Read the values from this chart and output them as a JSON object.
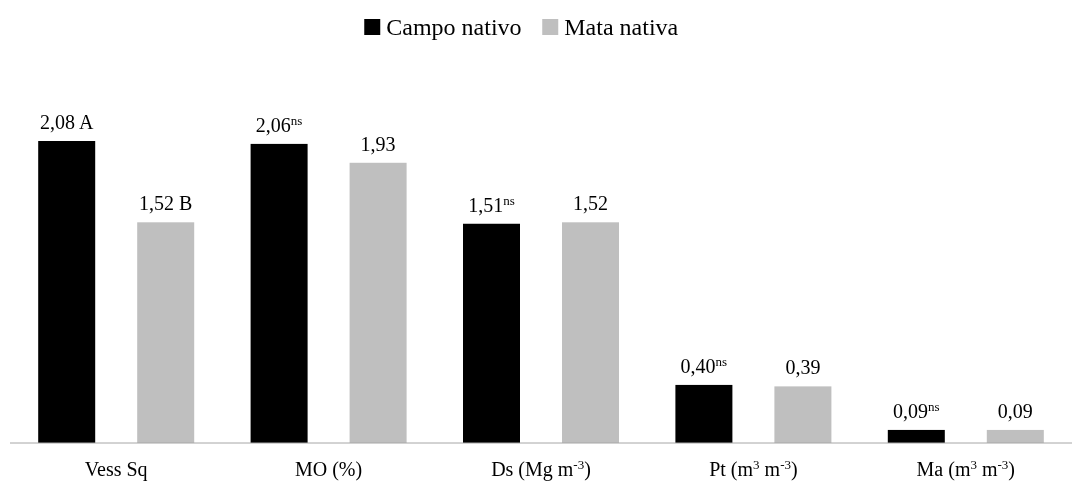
{
  "chart_data": {
    "type": "bar",
    "categories": [
      "Vess  Sq",
      "MO  (%)",
      "Ds (Mg m$^{-3}$)",
      "Pt  (m$^{3}$ m$^{-3}$)",
      "Ma (m$^{3}$ m$^{-3}$)"
    ],
    "series": [
      {
        "name": "Campo nativo",
        "color": "#000000",
        "values": [
          2.08,
          2.06,
          1.51,
          0.4,
          0.09
        ],
        "value_labels": [
          "2,08 A",
          "2,06$^{ns}$",
          "1,51$^{ns}$",
          "0,40$^{ns}$",
          "0,09$^{ns}$"
        ]
      },
      {
        "name": "Mata nativa",
        "color": "#bfbfbf",
        "values": [
          1.52,
          1.93,
          1.52,
          0.39,
          0.09
        ],
        "value_labels": [
          "1,52 B",
          "1,93",
          "1,52",
          "0,39",
          "0,09"
        ]
      }
    ],
    "legend": "top"
  }
}
